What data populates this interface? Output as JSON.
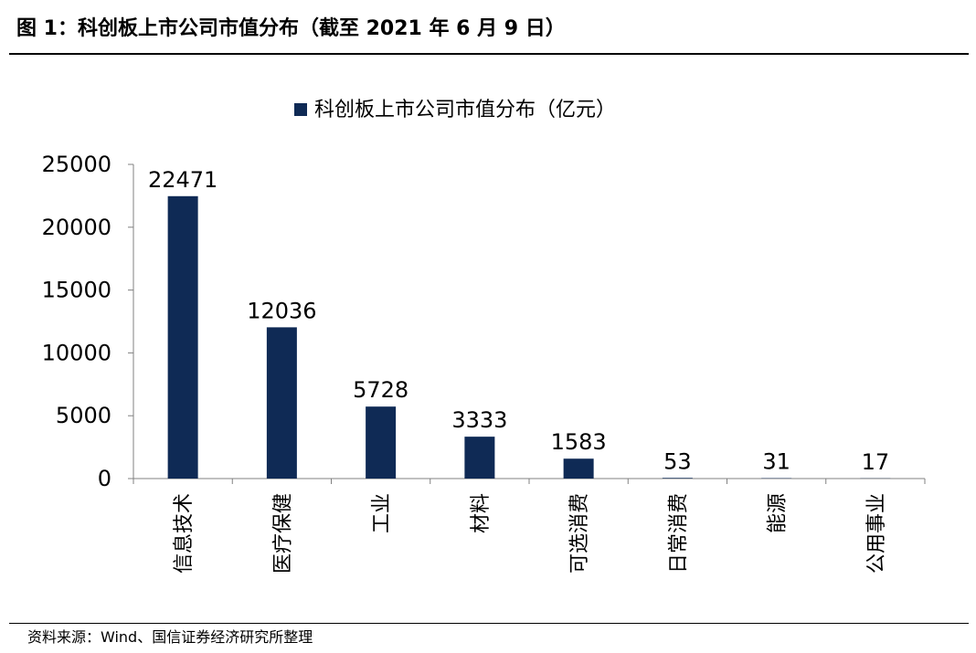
{
  "figure": {
    "title": "图 1：科创板上市公司市值分布（截至 2021 年 6 月 9 日）",
    "source": "资料来源：Wind、国信证券经济研究所整理"
  },
  "chart_data": {
    "type": "bar",
    "categories": [
      "信息技术",
      "医疗保健",
      "工业",
      "材料",
      "可选消费",
      "日常消费",
      "能源",
      "公用事业"
    ],
    "series": [
      {
        "name": "科创板上市公司市值分布（亿元）",
        "values": [
          22471,
          12036,
          5728,
          3333,
          1583,
          53,
          31,
          17
        ],
        "color": "#0f2a55"
      }
    ],
    "ylim": [
      0,
      25000
    ],
    "yticks": [
      0,
      5000,
      10000,
      15000,
      20000,
      25000
    ],
    "data_labels": true,
    "legend_position": "top-center",
    "grid": false,
    "xlabel": "",
    "ylabel": ""
  }
}
